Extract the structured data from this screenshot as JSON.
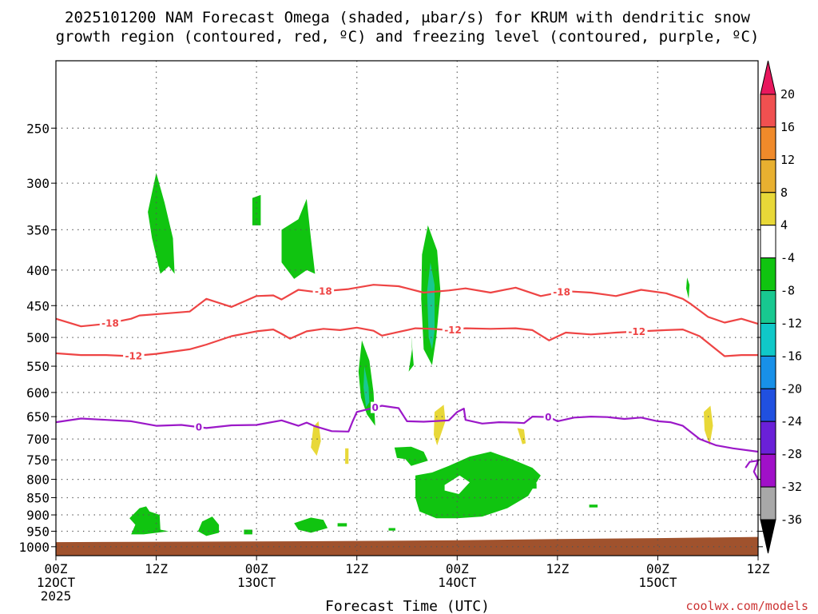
{
  "chart_data": {
    "type": "heatmap",
    "title_lines": [
      "2025101200 NAM Forecast Omega (shaded, μbar/s) for KRUM with dendritic snow",
      "growth region (contoured, red, ºC) and freezing level (contoured, purple, ºC)"
    ],
    "xlabel": "Forecast Time (UTC)",
    "credit": "coolwx.com/models",
    "x_ticks": [
      {
        "hour": 0,
        "lines": [
          "00Z",
          "12OCT",
          "2025"
        ]
      },
      {
        "hour": 12,
        "lines": [
          "12Z"
        ]
      },
      {
        "hour": 24,
        "lines": [
          "00Z",
          "13OCT"
        ]
      },
      {
        "hour": 36,
        "lines": [
          "12Z"
        ]
      },
      {
        "hour": 48,
        "lines": [
          "00Z",
          "14OCT"
        ]
      },
      {
        "hour": 60,
        "lines": [
          "12Z"
        ]
      },
      {
        "hour": 72,
        "lines": [
          "00Z",
          "15OCT"
        ]
      },
      {
        "hour": 84,
        "lines": [
          "12Z"
        ]
      }
    ],
    "xlim": [
      0,
      84
    ],
    "y_ticks": [
      250,
      300,
      350,
      400,
      450,
      500,
      550,
      600,
      650,
      700,
      750,
      800,
      850,
      900,
      950,
      1000
    ],
    "ylim": [
      1030,
      200
    ],
    "y_scale": "log",
    "grid": "dotted",
    "colorbar": {
      "labels": [
        "20",
        "16",
        "12",
        "8",
        "4",
        "-4",
        "-8",
        "-12",
        "-16",
        "-20",
        "-24",
        "-28",
        "-32",
        "-36"
      ],
      "colors": [
        "#e8175d",
        "#f05050",
        "#f08a2a",
        "#e8b030",
        "#e8d838",
        "#ffffff",
        "#10c410",
        "#18c890",
        "#10c8c8",
        "#1890e8",
        "#2050e0",
        "#6a20d8",
        "#a010c8",
        "#a8a8a8",
        "#000000"
      ]
    },
    "colors": {
      "dgz": "#ee4444",
      "freezing": "#9b18c8",
      "ground": "#a0522d",
      "omega_neg_8": "#10c410",
      "omega_neg_12": "#18c890",
      "omega_pos_4": "#e8d838"
    },
    "contours": [
      {
        "label": "-18",
        "color": "#ee4444",
        "x": [
          0,
          3,
          6,
          9,
          10,
          13,
          16,
          18,
          21,
          24,
          26,
          27,
          29,
          31,
          35,
          38,
          41,
          44,
          47,
          49,
          52,
          55,
          58,
          61,
          64,
          67,
          70,
          73,
          75,
          76,
          78,
          80,
          82,
          84
        ],
        "y": [
          470,
          482,
          478,
          470,
          465,
          462,
          459,
          440,
          452,
          436,
          435,
          441,
          427,
          430,
          426,
          420,
          422,
          431,
          428,
          425,
          431,
          424,
          436,
          429,
          431,
          436,
          427,
          432,
          440,
          448,
          467,
          476,
          470,
          478
        ]
      },
      {
        "label": "-12",
        "color": "#ee4444",
        "x": [
          0,
          3,
          6,
          9,
          12,
          16,
          18,
          21,
          24,
          26,
          27,
          28,
          30,
          32,
          34,
          36,
          38,
          39,
          41,
          43,
          45,
          47,
          49,
          52,
          55,
          57,
          59,
          61,
          64,
          67,
          70,
          73,
          75,
          77,
          80,
          82,
          84
        ],
        "y": [
          527,
          530,
          530,
          532,
          528,
          520,
          512,
          498,
          490,
          487,
          494,
          502,
          490,
          486,
          488,
          484,
          489,
          497,
          491,
          485,
          486,
          488,
          485,
          486,
          485,
          488,
          505,
          492,
          495,
          492,
          490,
          488,
          487,
          498,
          532,
          530,
          530
        ]
      },
      {
        "label": "0",
        "color": "#9b18c8",
        "x": [
          0,
          3,
          6,
          9,
          12,
          15,
          18,
          21,
          24,
          27,
          29,
          30,
          31,
          33,
          35,
          35.5,
          36,
          39,
          41,
          42,
          44,
          47,
          48,
          48.8,
          49,
          51,
          53,
          55,
          56,
          57,
          59,
          60,
          62,
          64,
          66,
          68,
          70,
          72,
          73.5,
          75,
          77,
          79,
          81,
          84
        ],
        "y": [
          662,
          654,
          657,
          660,
          670,
          668,
          675,
          669,
          668,
          658,
          670,
          663,
          671,
          682,
          683,
          660,
          640,
          627,
          632,
          660,
          661,
          658,
          640,
          633,
          657,
          665,
          662,
          663,
          664,
          650,
          651,
          660,
          652,
          650,
          651,
          655,
          652,
          660,
          662,
          670,
          700,
          715,
          722,
          730
        ]
      },
      {
        "label": "",
        "color": "#9b18c8",
        "x": [
          82.5,
          83,
          84,
          83.5,
          84
        ],
        "y": [
          770,
          755,
          752,
          780,
          800
        ]
      }
    ],
    "omega_regions": [
      {
        "value": "-4 to -8",
        "points": [
          [
            12,
            290
          ],
          [
            13,
            320
          ],
          [
            14,
            360
          ],
          [
            14.2,
            405
          ],
          [
            13.5,
            395
          ],
          [
            12.5,
            405
          ],
          [
            11.5,
            360
          ],
          [
            11,
            330
          ]
        ]
      },
      {
        "value": "-4 to -8",
        "points": [
          [
            23.5,
            315
          ],
          [
            24.5,
            312
          ],
          [
            24.5,
            345
          ],
          [
            23.5,
            345
          ]
        ]
      },
      {
        "value": "-4 to -8",
        "points": [
          [
            27,
            350
          ],
          [
            29,
            338
          ],
          [
            30,
            316
          ],
          [
            30.5,
            360
          ],
          [
            31,
            405
          ],
          [
            30,
            400
          ],
          [
            28.5,
            412
          ],
          [
            27,
            390
          ]
        ]
      },
      {
        "value": "-4 to -8",
        "points": [
          [
            44.5,
            345
          ],
          [
            45.6,
            375
          ],
          [
            46,
            430
          ],
          [
            45.5,
            500
          ],
          [
            45,
            548
          ],
          [
            44,
            520
          ],
          [
            43.7,
            440
          ],
          [
            43.8,
            380
          ]
        ]
      },
      {
        "value": "-8 to -12",
        "points": [
          [
            44.8,
            390
          ],
          [
            45.3,
            420
          ],
          [
            45.3,
            490
          ],
          [
            45,
            520
          ],
          [
            44.6,
            500
          ],
          [
            44.4,
            430
          ]
        ]
      },
      {
        "value": "-4 to -8",
        "points": [
          [
            42.2,
            560
          ],
          [
            42.6,
            520
          ],
          [
            42.5,
            495
          ],
          [
            42.8,
            548
          ]
        ]
      },
      {
        "value": "-4 to -8",
        "points": [
          [
            36.6,
            505
          ],
          [
            37.5,
            540
          ],
          [
            38,
            600
          ],
          [
            38.2,
            670
          ],
          [
            37.2,
            645
          ],
          [
            36.5,
            610
          ],
          [
            36.2,
            560
          ]
        ]
      },
      {
        "value": "-8 to -12",
        "points": [
          [
            36.9,
            550
          ],
          [
            37.4,
            590
          ],
          [
            37.5,
            620
          ],
          [
            37.1,
            630
          ],
          [
            36.8,
            590
          ]
        ]
      },
      {
        "value": "-4 to -8",
        "points": [
          [
            40.5,
            720
          ],
          [
            42.5,
            718
          ],
          [
            44,
            730
          ],
          [
            44.5,
            752
          ],
          [
            42.5,
            765
          ],
          [
            41.8,
            748
          ],
          [
            40.8,
            745
          ]
        ]
      },
      {
        "value": "-4 to -8",
        "points": [
          [
            43,
            790
          ],
          [
            45,
            782
          ],
          [
            47,
            765
          ],
          [
            49.5,
            742
          ],
          [
            52,
            730
          ],
          [
            54.5,
            748
          ],
          [
            57,
            770
          ],
          [
            58,
            790
          ],
          [
            56.5,
            845
          ],
          [
            54,
            880
          ],
          [
            51,
            905
          ],
          [
            48,
            910
          ],
          [
            45.5,
            910
          ],
          [
            43.5,
            890
          ],
          [
            43,
            850
          ]
        ]
      },
      {
        "value": "-4 to -8",
        "points": [
          [
            8.8,
            910
          ],
          [
            10,
            880
          ],
          [
            10.8,
            875
          ],
          [
            11.2,
            890
          ],
          [
            12.4,
            900
          ],
          [
            12.5,
            945
          ],
          [
            13.5,
            950
          ],
          [
            10.5,
            960
          ],
          [
            9,
            960
          ],
          [
            9.5,
            930
          ]
        ]
      },
      {
        "value": "-4 to -8",
        "points": [
          [
            17.5,
            920
          ],
          [
            18.7,
            905
          ],
          [
            19.5,
            930
          ],
          [
            19.5,
            955
          ],
          [
            18,
            965
          ],
          [
            17,
            950
          ]
        ]
      },
      {
        "value": "-4 to -8",
        "points": [
          [
            28.5,
            925
          ],
          [
            30.5,
            908
          ],
          [
            32,
            915
          ],
          [
            32.5,
            940
          ],
          [
            30.5,
            955
          ],
          [
            29,
            945
          ]
        ]
      },
      {
        "value": "-4 to -8",
        "points": [
          [
            75.5,
            410
          ],
          [
            75.8,
            420
          ],
          [
            75.7,
            440
          ],
          [
            75.4,
            425
          ]
        ]
      },
      {
        "value": "-4 to -8",
        "points": [
          [
            56.5,
            810
          ],
          [
            57.5,
            810
          ],
          [
            57.5,
            825
          ],
          [
            56.5,
            825
          ]
        ]
      },
      {
        "value": "-4 to -8",
        "points": [
          [
            22.5,
            945
          ],
          [
            23.5,
            945
          ],
          [
            23.5,
            960
          ],
          [
            22.5,
            960
          ]
        ]
      },
      {
        "value": "-4 to -8",
        "points": [
          [
            33.7,
            925
          ],
          [
            34.8,
            925
          ],
          [
            34.8,
            935
          ],
          [
            33.7,
            935
          ]
        ]
      },
      {
        "value": "-4 to -8",
        "points": [
          [
            39.8,
            940
          ],
          [
            40.6,
            940
          ],
          [
            40.6,
            948
          ],
          [
            39.8,
            948
          ]
        ]
      },
      {
        "value": "-4 to -8",
        "points": [
          [
            63.8,
            870
          ],
          [
            64.8,
            870
          ],
          [
            64.8,
            878
          ],
          [
            63.8,
            878
          ]
        ]
      },
      {
        "value": "4 to 8",
        "points": [
          [
            30.8,
            672
          ],
          [
            31.4,
            660
          ],
          [
            31.7,
            705
          ],
          [
            31.2,
            740
          ],
          [
            30.5,
            720
          ]
        ]
      },
      {
        "value": "4 to 8",
        "points": [
          [
            34.6,
            722
          ],
          [
            35,
            722
          ],
          [
            35,
            760
          ],
          [
            34.6,
            760
          ]
        ]
      },
      {
        "value": "4 to 8",
        "points": [
          [
            45.3,
            640
          ],
          [
            46.4,
            625
          ],
          [
            46.6,
            660
          ],
          [
            45.6,
            715
          ],
          [
            45.2,
            690
          ]
        ]
      },
      {
        "value": "4 to 8",
        "points": [
          [
            55.2,
            675
          ],
          [
            56,
            678
          ],
          [
            56.2,
            710
          ],
          [
            55.8,
            712
          ]
        ]
      },
      {
        "value": "4 to 8",
        "points": [
          [
            77.5,
            640
          ],
          [
            78.3,
            627
          ],
          [
            78.6,
            670
          ],
          [
            78.2,
            715
          ],
          [
            77.6,
            680
          ]
        ]
      }
    ],
    "omega_holes": [
      {
        "points": [
          [
            46.5,
            815
          ],
          [
            48.3,
            790
          ],
          [
            49.5,
            808
          ],
          [
            48.2,
            840
          ],
          [
            46.5,
            830
          ]
        ]
      }
    ]
  }
}
